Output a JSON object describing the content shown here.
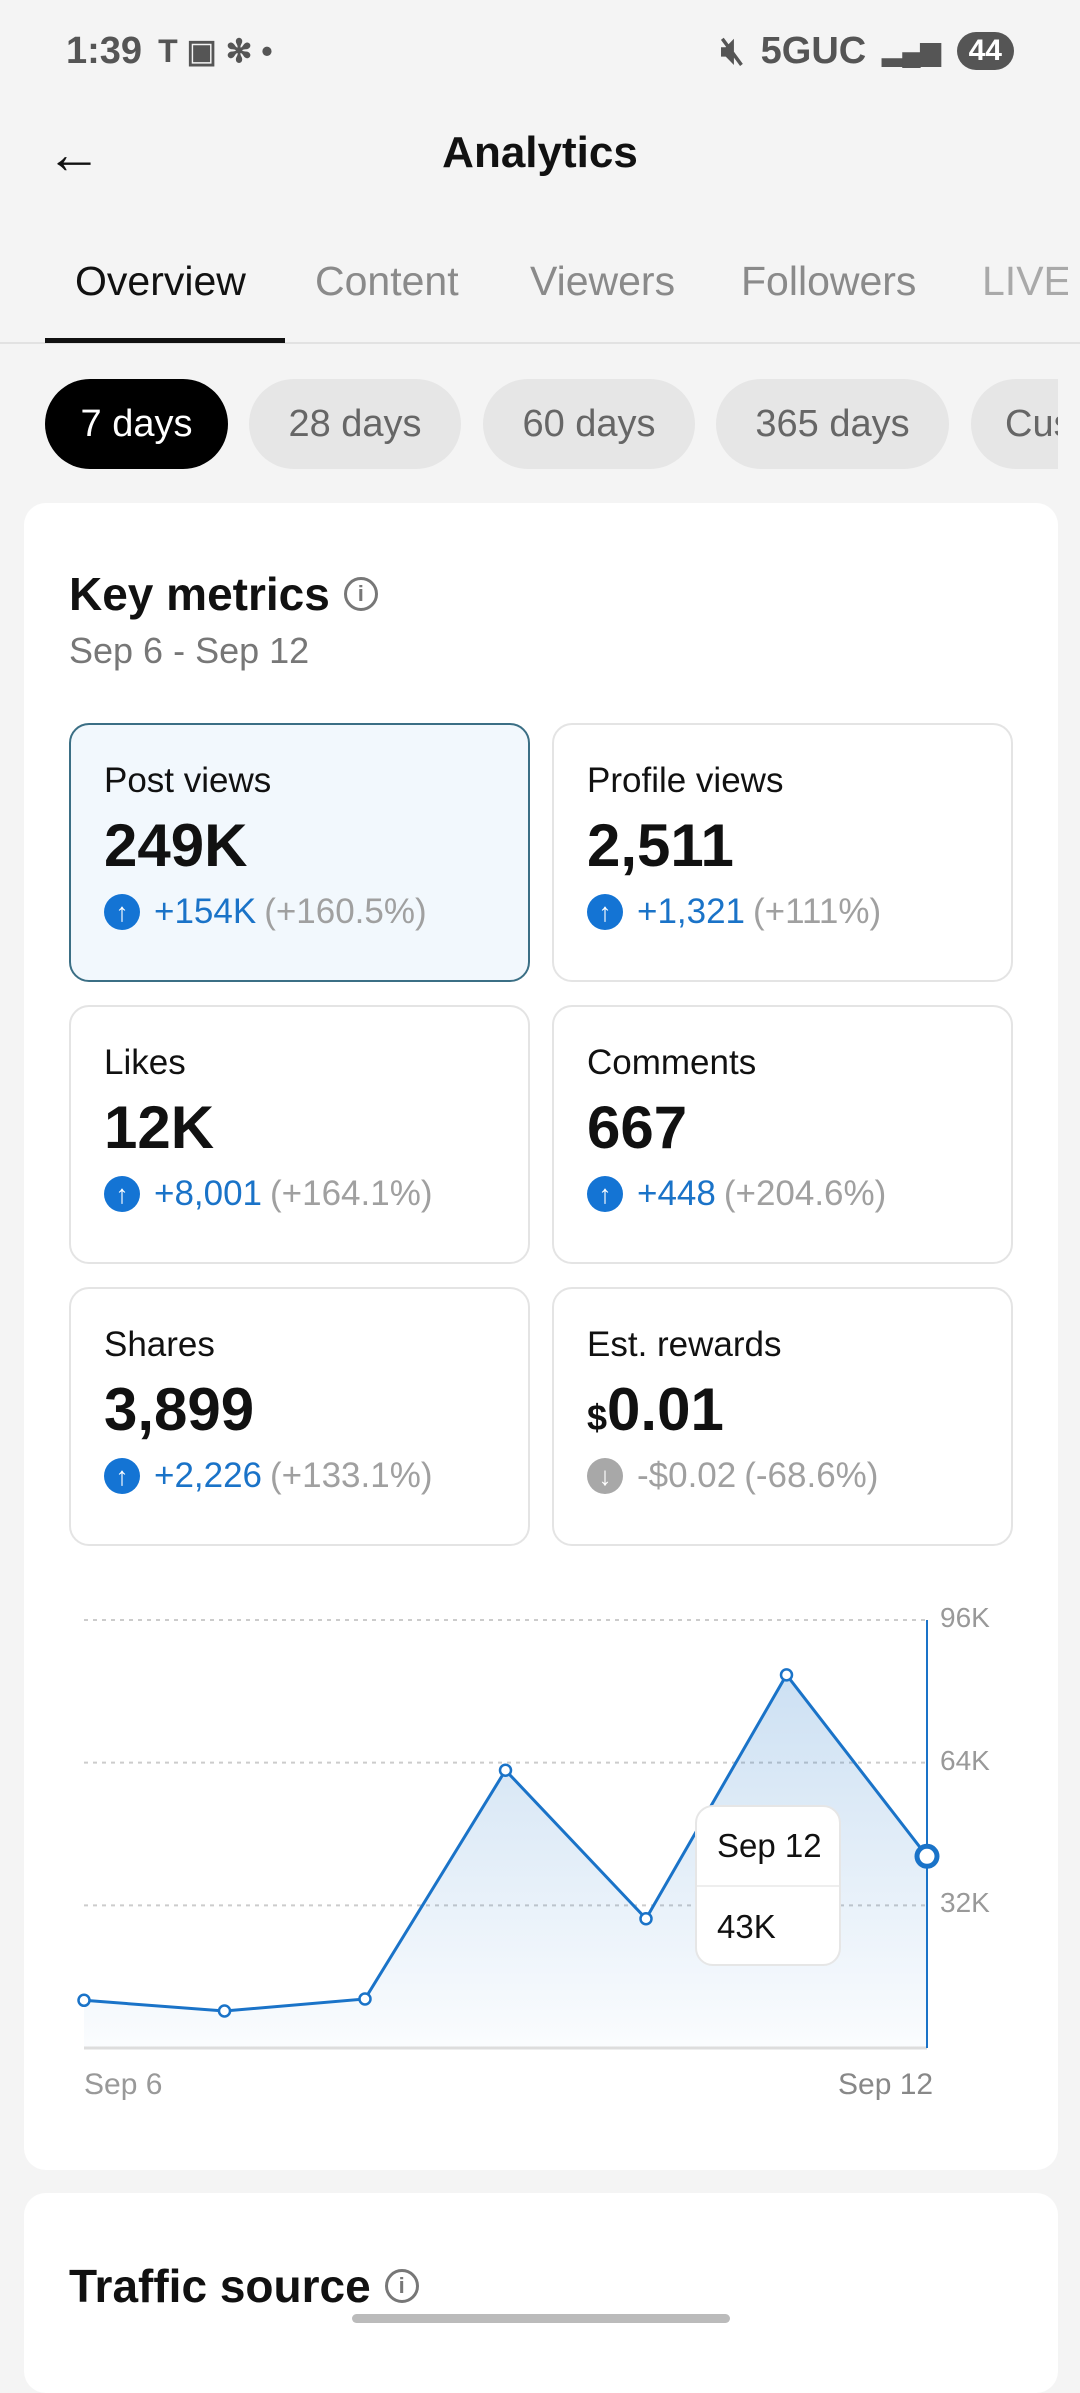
{
  "status_bar": {
    "time": "1:39",
    "network": "5GUC",
    "battery": "44"
  },
  "header": {
    "title": "Analytics",
    "back_icon": "arrow-left-icon"
  },
  "tabs": [
    {
      "label": "Overview",
      "active": true
    },
    {
      "label": "Content"
    },
    {
      "label": "Viewers"
    },
    {
      "label": "Followers"
    },
    {
      "label": "LIVE"
    }
  ],
  "periods": [
    {
      "label": "7 days",
      "active": true
    },
    {
      "label": "28 days"
    },
    {
      "label": "60 days"
    },
    {
      "label": "365 days"
    },
    {
      "label": "Custom"
    }
  ],
  "key_metrics": {
    "title": "Key metrics",
    "date_range": "Sep 6 - Sep 12",
    "cards": [
      {
        "label": "Post views",
        "value": "249K",
        "delta": "+154K",
        "pct": "(+160.5%)",
        "trend": "up",
        "selected": true
      },
      {
        "label": "Profile views",
        "value": "2,511",
        "delta": "+1,321",
        "pct": "(+111%)",
        "trend": "up"
      },
      {
        "label": "Likes",
        "value": "12K",
        "delta": "+8,001",
        "pct": "(+164.1%)",
        "trend": "up"
      },
      {
        "label": "Comments",
        "value": "667",
        "delta": "+448",
        "pct": "(+204.6%)",
        "trend": "up"
      },
      {
        "label": "Shares",
        "value": "3,899",
        "delta": "+2,226",
        "pct": "(+133.1%)",
        "trend": "up"
      },
      {
        "label": "Est. rewards",
        "currency": "$",
        "value": "0.01",
        "delta": "-$0.02",
        "pct": "(-68.6%)",
        "trend": "down"
      }
    ]
  },
  "chart_data": {
    "type": "area",
    "title": "Post views",
    "x": [
      "Sep 6",
      "Sep 7",
      "Sep 8",
      "Sep 9",
      "Sep 10",
      "Sep 11",
      "Sep 12"
    ],
    "values": [
      10700,
      8300,
      11000,
      62300,
      29000,
      83700,
      43000
    ],
    "x_tick_labels": [
      "Sep 6",
      "Sep 12"
    ],
    "y_tick_labels": [
      "96K",
      "64K",
      "32K"
    ],
    "y_ticks": [
      96000,
      64000,
      32000
    ],
    "ylim": [
      0,
      96000
    ],
    "grid": true,
    "color": "#1a73c8",
    "tooltip": {
      "date": "Sep 12",
      "value": "43K"
    }
  },
  "traffic_source": {
    "title": "Traffic source"
  }
}
